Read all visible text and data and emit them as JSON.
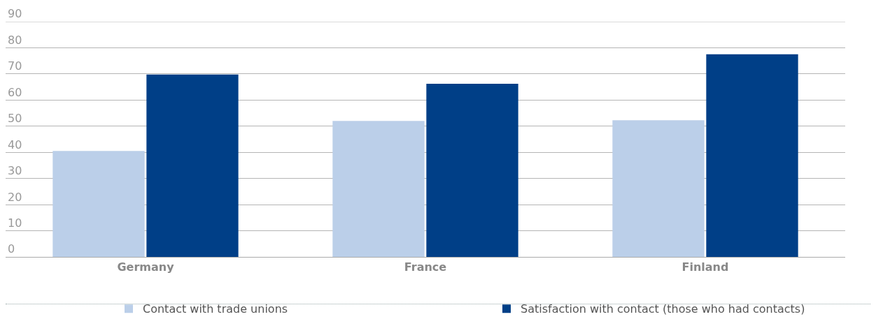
{
  "chart_data": {
    "type": "bar",
    "categories": [
      "Germany",
      "France",
      "Finland"
    ],
    "series": [
      {
        "name": "Contact with trade unions",
        "color": "#bbcfe9",
        "values": [
          40.5,
          52,
          52.3
        ]
      },
      {
        "name": "Satisfaction with contact (those who had contacts)",
        "color": "#003f87",
        "values": [
          69.8,
          66.2,
          77.5
        ]
      }
    ],
    "ylim": [
      0,
      90
    ],
    "yticks": [
      0,
      10,
      20,
      30,
      40,
      50,
      60,
      70,
      80,
      90
    ],
    "grid": "y",
    "legend": "bottom"
  }
}
